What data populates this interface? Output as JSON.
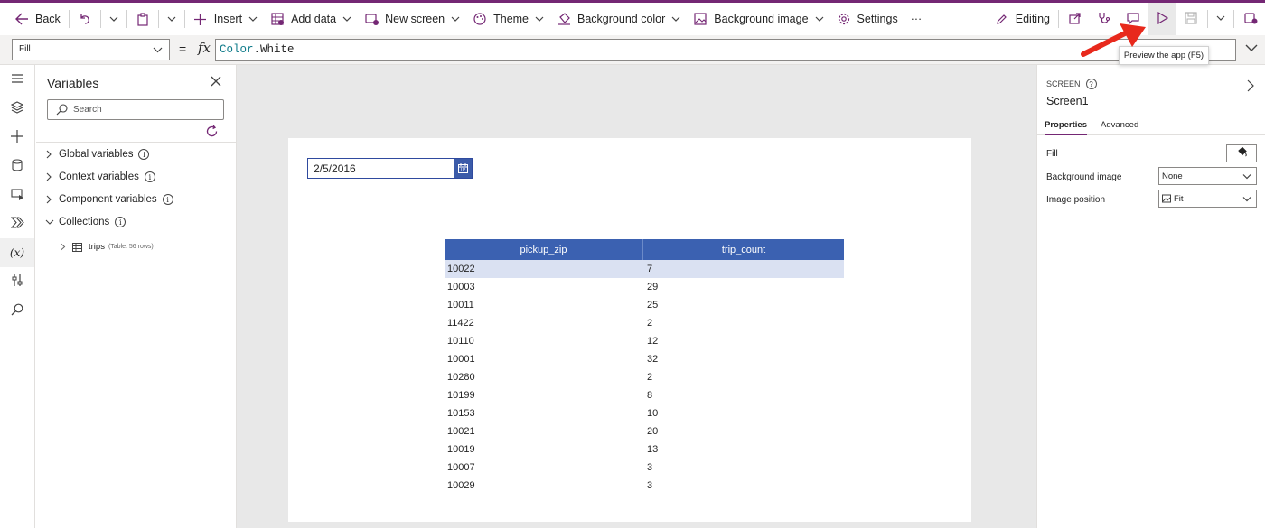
{
  "toolbar": {
    "back": "Back",
    "insert": "Insert",
    "add_data": "Add data",
    "new_screen": "New screen",
    "theme": "Theme",
    "background_color": "Background color",
    "background_image": "Background image",
    "settings": "Settings",
    "more": "···",
    "editing": "Editing"
  },
  "formula_bar": {
    "property": "Fill",
    "equals": "=",
    "fx": "fx",
    "formula_object": "Color",
    "formula_member": ".White"
  },
  "variables_panel": {
    "title": "Variables",
    "search_placeholder": "Search",
    "groups": [
      {
        "label": "Global variables"
      },
      {
        "label": "Context variables"
      },
      {
        "label": "Component variables"
      },
      {
        "label": "Collections"
      }
    ],
    "collection_item": {
      "name": "trips",
      "detail": "(Table: 56 rows)"
    }
  },
  "canvas": {
    "date_value": "2/5/2016",
    "table": {
      "columns": [
        "pickup_zip",
        "trip_count"
      ],
      "rows": [
        [
          "10022",
          "7"
        ],
        [
          "10003",
          "29"
        ],
        [
          "10011",
          "25"
        ],
        [
          "11422",
          "2"
        ],
        [
          "10110",
          "12"
        ],
        [
          "10001",
          "32"
        ],
        [
          "10280",
          "2"
        ],
        [
          "10199",
          "8"
        ],
        [
          "10153",
          "10"
        ],
        [
          "10021",
          "20"
        ],
        [
          "10019",
          "13"
        ],
        [
          "10007",
          "3"
        ],
        [
          "10029",
          "3"
        ]
      ],
      "selected_row": 0
    }
  },
  "properties_panel": {
    "kind": "SCREEN",
    "name": "Screen1",
    "tabs": [
      "Properties",
      "Advanced"
    ],
    "fill_label": "Fill",
    "background_image_label": "Background image",
    "background_image_value": "None",
    "image_position_label": "Image position",
    "image_position_value": "Fit"
  },
  "tooltip": "Preview the app (F5)",
  "colors": {
    "brand": "#742774",
    "table_header": "#3b61b1",
    "selected_row": "#dae1f2",
    "annotation_arrow": "#e8291c"
  }
}
